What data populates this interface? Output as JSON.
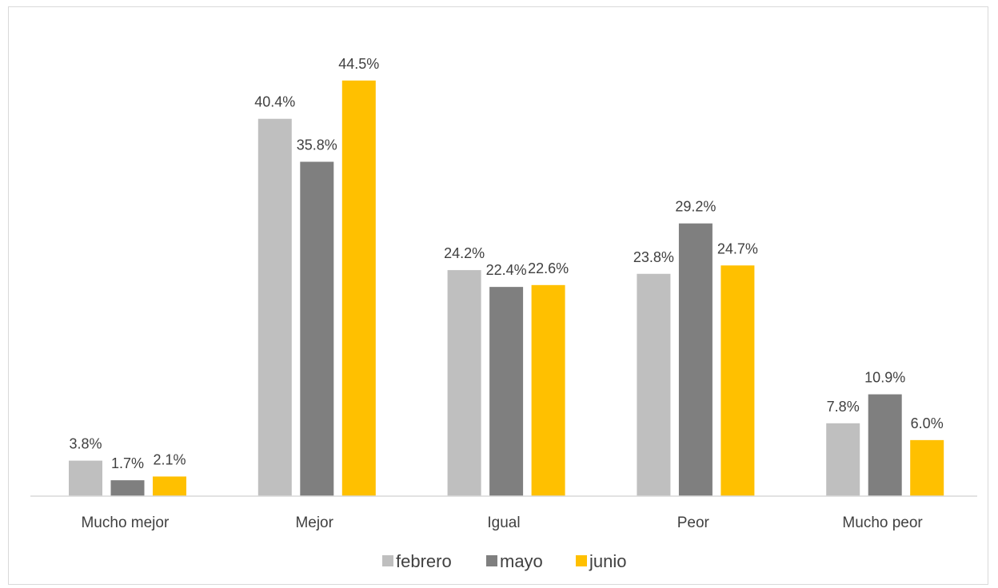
{
  "chart_data": {
    "type": "bar",
    "title": "",
    "xlabel": "",
    "ylabel": "",
    "ylim": [
      0,
      50
    ],
    "grid": false,
    "legend_position": "bottom",
    "categories": [
      "Mucho mejor",
      "Mejor",
      "Igual",
      "Peor",
      "Mucho peor"
    ],
    "series": [
      {
        "name": "febrero",
        "color": "#bfbfbf",
        "values": [
          3.8,
          40.4,
          24.2,
          23.8,
          7.8
        ],
        "labels": [
          "3.8%",
          "40.4%",
          "24.2%",
          "23.8%",
          "7.8%"
        ]
      },
      {
        "name": "mayo",
        "color": "#7f7f7f",
        "values": [
          1.7,
          35.8,
          22.4,
          29.2,
          10.9
        ],
        "labels": [
          "1.7%",
          "35.8%",
          "22.4%",
          "29.2%",
          "10.9%"
        ]
      },
      {
        "name": "junio",
        "color": "#ffc000",
        "values": [
          2.1,
          44.5,
          22.6,
          24.7,
          6.0
        ],
        "labels": [
          "2.1%",
          "44.5%",
          "22.6%",
          "24.7%",
          "6.0%"
        ]
      }
    ]
  }
}
